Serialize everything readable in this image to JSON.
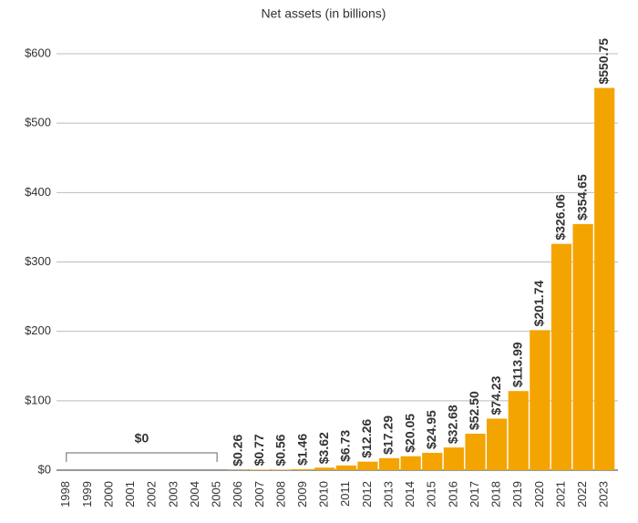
{
  "chart_data": {
    "type": "bar",
    "title": "Net assets (in billions)",
    "categories": [
      "1998",
      "1999",
      "2000",
      "2001",
      "2002",
      "2003",
      "2004",
      "2005",
      "2006",
      "2007",
      "2008",
      "2009",
      "2010",
      "2011",
      "2012",
      "2013",
      "2014",
      "2015",
      "2016",
      "2017",
      "2018",
      "2019",
      "2020",
      "2021",
      "2022",
      "2023"
    ],
    "values": [
      0,
      0,
      0,
      0,
      0,
      0,
      0,
      0,
      0.26,
      0.77,
      0.56,
      1.46,
      3.62,
      6.73,
      12.26,
      17.29,
      20.05,
      24.95,
      32.68,
      52.5,
      74.23,
      113.99,
      201.74,
      326.06,
      354.65,
      550.75
    ],
    "value_labels": [
      null,
      null,
      null,
      null,
      null,
      null,
      null,
      null,
      "$0.26",
      "$0.77",
      "$0.56",
      "$1.46",
      "$3.62",
      "$6.73",
      "$12.26",
      "$17.29",
      "$20.05",
      "$24.95",
      "$32.68",
      "$52.50",
      "$74.23",
      "$113.99",
      "$201.74",
      "$326.06",
      "$354.65",
      "$550.75"
    ],
    "annotation": "$0",
    "color": "#f4a400",
    "ylim": [
      0,
      600
    ],
    "yticks": [
      {
        "value": 0,
        "label": "$0"
      },
      {
        "value": 100,
        "label": "$100"
      },
      {
        "value": 200,
        "label": "$200"
      },
      {
        "value": 300,
        "label": "$300"
      },
      {
        "value": 400,
        "label": "$400"
      },
      {
        "value": 500,
        "label": "$500"
      },
      {
        "value": 600,
        "label": "$600"
      }
    ],
    "grid": true
  }
}
